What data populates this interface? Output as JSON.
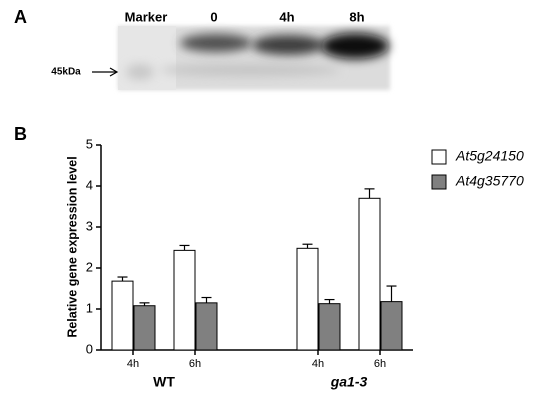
{
  "panel_a": {
    "label": "A",
    "lanes": [
      "Marker",
      "0",
      "4h",
      "8h"
    ],
    "marker_size": "45kDa"
  },
  "panel_b": {
    "label": "B"
  },
  "chart_data": {
    "type": "bar",
    "y_label": "Relative gene expression level",
    "categories": [
      "4h",
      "6h",
      "4h",
      "6h"
    ],
    "groups": [
      "WT",
      "ga1-3"
    ],
    "series": [
      {
        "name": "At5g24150",
        "color": "#ffffff",
        "values": [
          1.68,
          2.43,
          2.48,
          3.7
        ],
        "errors": [
          0.1,
          0.12,
          0.1,
          0.23
        ]
      },
      {
        "name": "At4g35770",
        "color": "#808080",
        "values": [
          1.08,
          1.15,
          1.13,
          1.18
        ],
        "errors": [
          0.07,
          0.13,
          0.1,
          0.38
        ]
      }
    ],
    "ylim": [
      0,
      5
    ],
    "yticks": [
      0,
      1,
      2,
      3,
      4,
      5
    ]
  }
}
